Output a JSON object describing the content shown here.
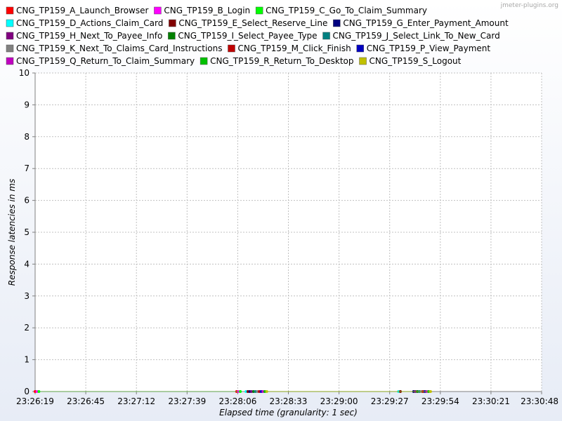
{
  "watermark": "jmeter-plugins.org",
  "chart_data": {
    "type": "scatter",
    "xlabel": "Elapsed time (granularity: 1 sec)",
    "ylabel": "Response latencies in ms",
    "ylim": [
      0,
      10
    ],
    "y_ticks": [
      "0",
      "1",
      "2",
      "3",
      "4",
      "5",
      "6",
      "7",
      "8",
      "9",
      "10"
    ],
    "x_ticks": [
      "23:26:19",
      "23:26:45",
      "23:27:12",
      "23:27:39",
      "23:28:06",
      "23:28:33",
      "23:29:00",
      "23:29:27",
      "23:29:54",
      "23:30:21",
      "23:30:48"
    ],
    "x_range_seconds": [
      0,
      269
    ],
    "grid": true,
    "legend_position": "top",
    "series": [
      {
        "name": "CNG_TP159_A_Launch_Browser",
        "color": "#ff0000",
        "x": [
          0,
          107
        ],
        "values": [
          0,
          0
        ]
      },
      {
        "name": "CNG_TP159_B_Login",
        "color": "#ff00ff",
        "x": [
          1,
          108
        ],
        "values": [
          0,
          0
        ]
      },
      {
        "name": "CNG_TP159_C_Go_To_Claim_Summary",
        "color": "#00ff00",
        "x": [
          2,
          109
        ],
        "values": [
          0,
          0
        ]
      },
      {
        "name": "CNG_TP159_D_Actions_Claim_Card",
        "color": "#00ffff",
        "x": [
          112,
          193
        ],
        "values": [
          0,
          0
        ]
      },
      {
        "name": "CNG_TP159_E_Select_Reserve_Line",
        "color": "#800000",
        "x": [
          113,
          194
        ],
        "values": [
          0,
          0
        ]
      },
      {
        "name": "CNG_TP159_G_Enter_Payment_Amount",
        "color": "#000080",
        "x": [
          114,
          201
        ],
        "values": [
          0,
          0
        ]
      },
      {
        "name": "CNG_TP159_H_Next_To_Payee_Info",
        "color": "#800080",
        "x": [
          115,
          202
        ],
        "values": [
          0,
          0
        ]
      },
      {
        "name": "CNG_TP159_I_Select_Payee_Type",
        "color": "#008000",
        "x": [
          116,
          203
        ],
        "values": [
          0,
          0
        ]
      },
      {
        "name": "CNG_TP159_J_Select_Link_To_New_Card",
        "color": "#008080",
        "x": [
          117,
          204
        ],
        "values": [
          0,
          0
        ]
      },
      {
        "name": "CNG_TP159_K_Next_To_Claims_Card_Instructions",
        "color": "#808080",
        "x": [
          118,
          205
        ],
        "values": [
          0,
          0
        ]
      },
      {
        "name": "CNG_TP159_M_Click_Finish",
        "color": "#c00000",
        "x": [
          119,
          206
        ],
        "values": [
          0,
          0
        ]
      },
      {
        "name": "CNG_TP159_P_View_Payment",
        "color": "#0000c0",
        "x": [
          120,
          207
        ],
        "values": [
          0,
          0
        ]
      },
      {
        "name": "CNG_TP159_Q_Return_To_Claim_Summary",
        "color": "#c000c0",
        "x": [
          121,
          208
        ],
        "values": [
          0,
          0
        ]
      },
      {
        "name": "CNG_TP159_R_Return_To_Desktop",
        "color": "#00c000",
        "x": [
          122,
          209
        ],
        "values": [
          0,
          0
        ]
      },
      {
        "name": "CNG_TP159_S_Logout",
        "color": "#c0c000",
        "x": [
          123,
          210
        ],
        "values": [
          0,
          0
        ]
      }
    ]
  }
}
